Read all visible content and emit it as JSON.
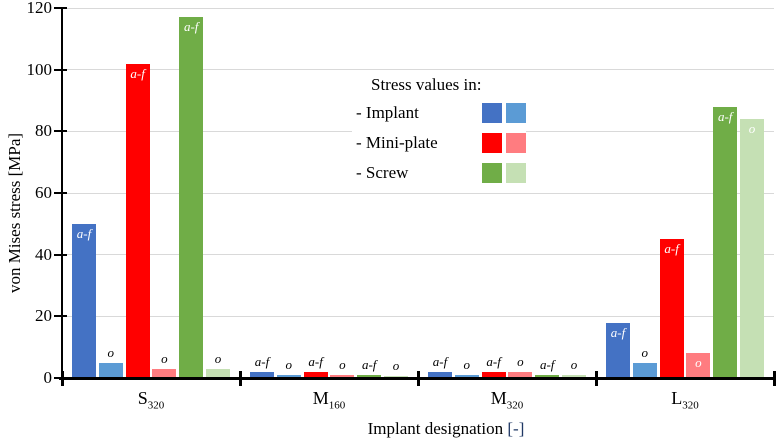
{
  "figure": {
    "ylabel": "von Mises stress [MPa]",
    "xlabel_text": "Implant designation ",
    "xlabel_unit": "[-]"
  },
  "legend": {
    "title": "Stress values in:",
    "entries": [
      {
        "label": "- Implant",
        "colors": [
          "#4472C4",
          "#5B9BD5"
        ]
      },
      {
        "label": "- Mini-plate",
        "colors": [
          "#FF0000",
          "#FF7C80"
        ]
      },
      {
        "label": "- Screw",
        "colors": [
          "#70AD47",
          "#C5E0B4"
        ]
      }
    ]
  },
  "chart_data": {
    "type": "bar",
    "title": "",
    "xlabel": "Implant designation [-]",
    "ylabel": "von Mises stress [MPa]",
    "ylim": [
      0,
      120
    ],
    "yticks": [
      0,
      20,
      40,
      60,
      80,
      100,
      120
    ],
    "grid": "horizontal",
    "legend_position": "upper center",
    "categories": [
      "S320",
      "M160",
      "M320",
      "L320"
    ],
    "categories_rich": [
      {
        "base": "S",
        "sub": "320"
      },
      {
        "base": "M",
        "sub": "160"
      },
      {
        "base": "M",
        "sub": "320"
      },
      {
        "base": "L",
        "sub": "320"
      }
    ],
    "series": [
      {
        "name": "Implant a-f",
        "group": "Implant",
        "bar_label": "a-f",
        "color": "#4472C4",
        "values": [
          50,
          2,
          2,
          18
        ]
      },
      {
        "name": "Implant o",
        "group": "Implant",
        "bar_label": "o",
        "color": "#5B9BD5",
        "values": [
          5,
          1,
          1,
          5
        ]
      },
      {
        "name": "Mini-plate a-f",
        "group": "Mini-plate",
        "bar_label": "a-f",
        "color": "#FF0000",
        "values": [
          102,
          2,
          2,
          45
        ]
      },
      {
        "name": "Mini-plate o",
        "group": "Mini-plate",
        "bar_label": "o",
        "color": "#FF7C80",
        "values": [
          3,
          1,
          2,
          8
        ]
      },
      {
        "name": "Screw a-f",
        "group": "Screw",
        "bar_label": "a-f",
        "color": "#70AD47",
        "values": [
          117,
          1,
          1,
          88
        ]
      },
      {
        "name": "Screw o",
        "group": "Screw",
        "bar_label": "o",
        "color": "#C5E0B4",
        "values": [
          3,
          0.5,
          1,
          84
        ]
      }
    ]
  },
  "colors": {
    "axis": "#000000",
    "gridline": "#D9D9D9",
    "text": "#000000",
    "unit_bracket": "#1F3864",
    "bar_label_inside": "#FFFFFF",
    "bar_label_outside": "#000000"
  }
}
